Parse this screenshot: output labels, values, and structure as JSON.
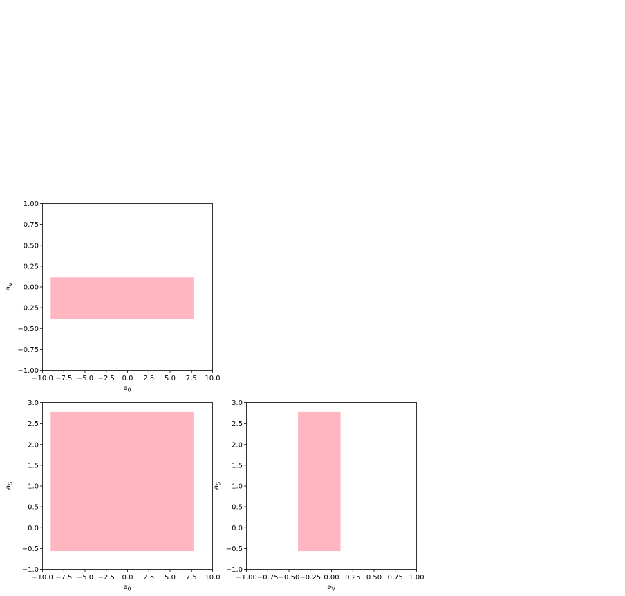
{
  "colors": {
    "fill": "#ffb6c1",
    "axes": "#000000",
    "background": "#ffffff"
  },
  "chart_data": [
    {
      "type": "area",
      "grid": false,
      "xlabel": "a_0",
      "ylabel": "a_V",
      "xlim": [
        -10,
        10
      ],
      "ylim": [
        -1,
        1
      ],
      "xticks": [
        "−10.0",
        "−7.5",
        "−5.0",
        "−2.5",
        "0.0",
        "2.5",
        "5.0",
        "7.5",
        "10.0"
      ],
      "xtick_values": [
        -10,
        -7.5,
        -5,
        -2.5,
        0,
        2.5,
        5,
        7.5,
        10
      ],
      "yticks": [
        "−1.00",
        "−0.75",
        "−0.50",
        "−0.25",
        "0.00",
        "0.25",
        "0.50",
        "0.75",
        "1.00"
      ],
      "ytick_values": [
        -1,
        -0.75,
        -0.5,
        -0.25,
        0,
        0.25,
        0.5,
        0.75,
        1
      ],
      "region": {
        "x": [
          -9.0,
          7.8
        ],
        "y": [
          -0.39,
          0.11
        ]
      }
    },
    {
      "type": "area",
      "grid": false,
      "xlabel": "a_0",
      "ylabel": "a_S",
      "xlim": [
        -10,
        10
      ],
      "ylim": [
        -1,
        3
      ],
      "xticks": [
        "−10.0",
        "−7.5",
        "−5.0",
        "−2.5",
        "0.0",
        "2.5",
        "5.0",
        "7.5",
        "10.0"
      ],
      "xtick_values": [
        -10,
        -7.5,
        -5,
        -2.5,
        0,
        2.5,
        5,
        7.5,
        10
      ],
      "yticks": [
        "−1.0",
        "−0.5",
        "0.0",
        "0.5",
        "1.0",
        "1.5",
        "2.0",
        "2.5",
        "3.0"
      ],
      "ytick_values": [
        -1,
        -0.5,
        0,
        0.5,
        1,
        1.5,
        2,
        2.5,
        3
      ],
      "region": {
        "x": [
          -9.0,
          7.8
        ],
        "y": [
          -0.57,
          2.77
        ]
      }
    },
    {
      "type": "area",
      "grid": false,
      "xlabel": "a_V",
      "ylabel": "a_S",
      "xlim": [
        -1,
        1
      ],
      "ylim": [
        -1,
        3
      ],
      "xticks": [
        "−1.00",
        "−0.75",
        "−0.50",
        "−0.25",
        "0.00",
        "0.25",
        "0.50",
        "0.75",
        "1.00"
      ],
      "xtick_values": [
        -1,
        -0.75,
        -0.5,
        -0.25,
        0,
        0.25,
        0.5,
        0.75,
        1
      ],
      "yticks": [
        "−1.0",
        "−0.5",
        "0.0",
        "0.5",
        "1.0",
        "1.5",
        "2.0",
        "2.5",
        "3.0"
      ],
      "ytick_values": [
        -1,
        -0.5,
        0,
        0.5,
        1,
        1.5,
        2,
        2.5,
        3
      ],
      "region": {
        "x": [
          -0.39,
          0.11
        ],
        "y": [
          -0.57,
          2.77
        ]
      }
    }
  ]
}
